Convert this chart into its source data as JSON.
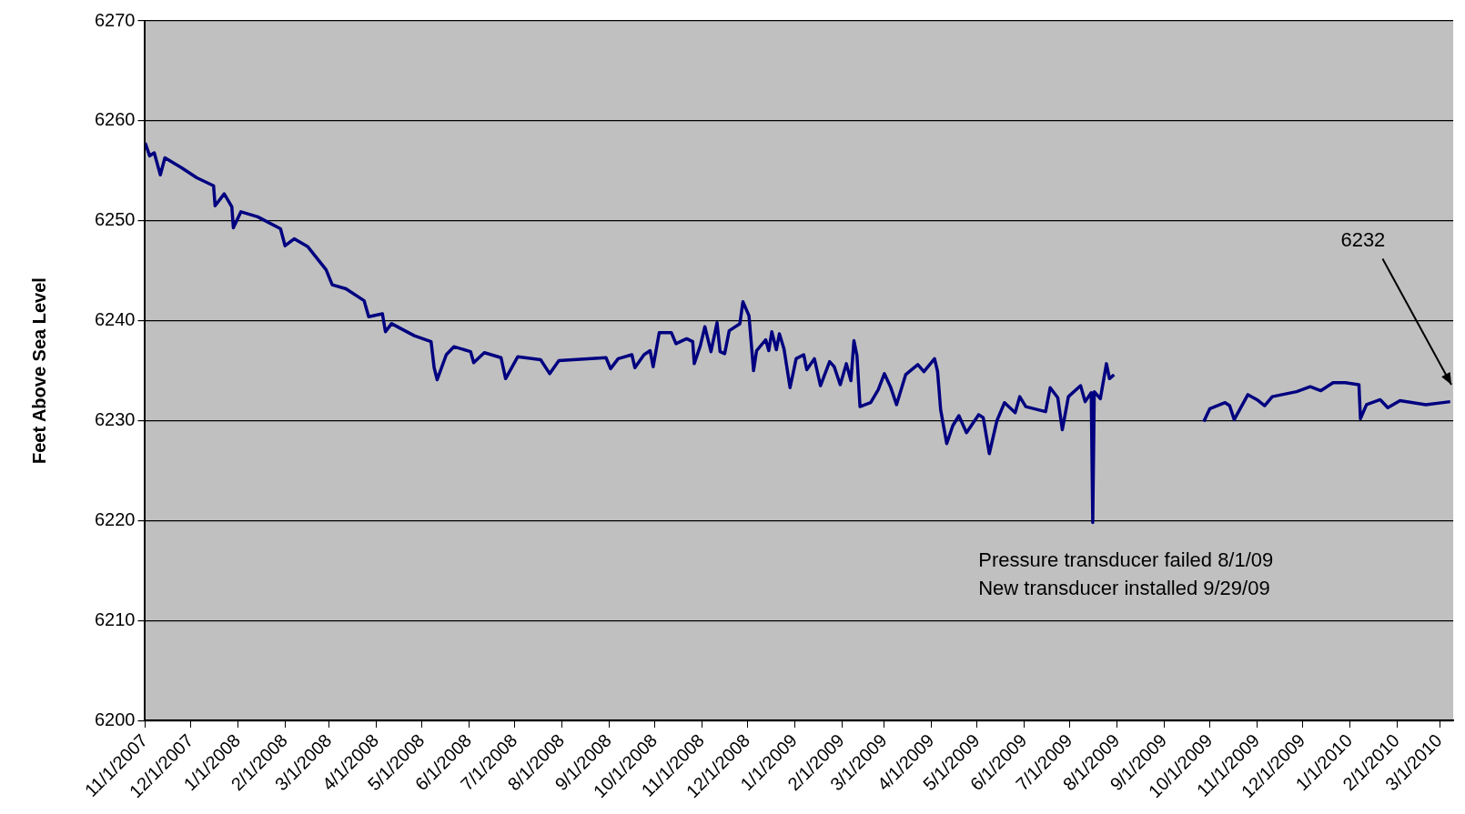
{
  "chart_data": {
    "type": "line",
    "ylabel": "Feet Above Sea Level",
    "x": [
      "2007-11-01",
      "2007-11-04",
      "2007-11-07",
      "2007-11-11",
      "2007-11-14",
      "2007-11-25",
      "2007-12-05",
      "2007-12-16",
      "2007-12-17",
      "2007-12-23",
      "2007-12-28",
      "2007-12-29",
      "2008-01-03",
      "2008-01-14",
      "2008-01-29",
      "2008-02-01",
      "2008-02-07",
      "2008-02-16",
      "2008-02-28",
      "2008-03-03",
      "2008-03-12",
      "2008-03-24",
      "2008-03-27",
      "2008-04-05",
      "2008-04-07",
      "2008-04-11",
      "2008-04-26",
      "2008-05-07",
      "2008-05-09",
      "2008-05-11",
      "2008-05-17",
      "2008-05-22",
      "2008-06-02",
      "2008-06-04",
      "2008-06-11",
      "2008-06-22",
      "2008-06-25",
      "2008-07-03",
      "2008-07-18",
      "2008-07-24",
      "2008-07-30",
      "2008-08-30",
      "2008-09-02",
      "2008-09-07",
      "2008-09-16",
      "2008-09-18",
      "2008-09-24",
      "2008-09-28",
      "2008-09-30",
      "2008-10-04",
      "2008-10-12",
      "2008-10-15",
      "2008-10-22",
      "2008-10-26",
      "2008-10-27",
      "2008-10-31",
      "2008-11-03",
      "2008-11-07",
      "2008-11-11",
      "2008-11-13",
      "2008-11-16",
      "2008-11-19",
      "2008-11-26",
      "2008-11-28",
      "2008-12-02",
      "2008-12-05",
      "2008-12-07",
      "2008-12-13",
      "2008-12-15",
      "2008-12-17",
      "2008-12-20",
      "2008-12-22",
      "2008-12-25",
      "2008-12-29",
      "2009-01-02",
      "2009-01-07",
      "2009-01-09",
      "2009-01-14",
      "2009-01-18",
      "2009-01-24",
      "2009-01-27",
      "2009-01-31",
      "2009-02-04",
      "2009-02-07",
      "2009-02-09",
      "2009-02-11",
      "2009-02-13",
      "2009-02-20",
      "2009-02-25",
      "2009-03-01",
      "2009-03-05",
      "2009-03-09",
      "2009-03-15",
      "2009-03-23",
      "2009-03-27",
      "2009-04-03",
      "2009-04-05",
      "2009-04-07",
      "2009-04-11",
      "2009-04-15",
      "2009-04-19",
      "2009-04-24",
      "2009-05-02",
      "2009-05-05",
      "2009-05-09",
      "2009-05-14",
      "2009-05-19",
      "2009-05-26",
      "2009-05-29",
      "2009-06-02",
      "2009-06-15",
      "2009-06-18",
      "2009-06-23",
      "2009-06-26",
      "2009-06-30",
      "2009-07-08",
      "2009-07-11",
      "2009-07-15",
      "2009-07-16",
      "2009-07-17",
      "2009-07-21",
      "2009-07-25",
      "2009-07-27",
      "2009-07-30",
      "2009-08-30",
      "2009-09-27",
      "2009-10-01",
      "2009-10-11",
      "2009-10-14",
      "2009-10-17",
      "2009-10-26",
      "2009-11-01",
      "2009-11-06",
      "2009-11-11",
      "2009-11-27",
      "2009-12-06",
      "2009-12-13",
      "2009-12-21",
      "2009-12-29",
      "2010-01-07",
      "2010-01-08",
      "2010-01-12",
      "2010-01-21",
      "2010-01-26",
      "2010-02-03",
      "2010-02-20",
      "2010-03-08"
    ],
    "series": [
      {
        "color": "#000080",
        "values": [
          6257.8,
          6256.5,
          6256.8,
          6254.6,
          6256.3,
          6255.3,
          6254.3,
          6253.5,
          6251.5,
          6252.7,
          6251.4,
          6249.3,
          6250.9,
          6250.4,
          6249.2,
          6247.5,
          6248.2,
          6247.4,
          6245.1,
          6243.6,
          6243.2,
          6242.0,
          6240.4,
          6240.7,
          6238.9,
          6239.7,
          6238.5,
          6237.9,
          6235.3,
          6234.1,
          6236.6,
          6237.4,
          6236.9,
          6235.8,
          6236.8,
          6236.3,
          6234.2,
          6236.4,
          6236.1,
          6234.7,
          6236.0,
          6236.3,
          6235.2,
          6236.2,
          6236.6,
          6235.3,
          6236.6,
          6237.0,
          6235.4,
          6238.8,
          6238.8,
          6237.7,
          6238.2,
          6237.9,
          6235.7,
          6237.5,
          6239.4,
          6236.9,
          6239.8,
          6236.9,
          6236.7,
          6239.0,
          6239.7,
          6241.9,
          6240.5,
          6235.0,
          6237.0,
          6238.1,
          6237.0,
          6238.9,
          6237.1,
          6238.7,
          6237.2,
          6233.3,
          6236.2,
          6236.6,
          6235.1,
          6236.2,
          6233.5,
          6235.9,
          6235.4,
          6233.6,
          6235.7,
          6234.0,
          6238.0,
          6236.5,
          6231.4,
          6231.8,
          6233.1,
          6234.7,
          6233.4,
          6231.6,
          6234.6,
          6235.6,
          6234.9,
          6236.2,
          6234.9,
          6231.1,
          6227.7,
          6229.5,
          6230.5,
          6228.8,
          6230.6,
          6230.3,
          6226.7,
          6230.0,
          6231.8,
          6230.8,
          6232.4,
          6231.4,
          6230.9,
          6233.3,
          6232.3,
          6229.1,
          6232.4,
          6233.5,
          6231.9,
          6232.8,
          6219.8,
          6232.9,
          6232.2,
          6235.7,
          6234.2,
          6234.6,
          null,
          6229.9,
          6231.2,
          6231.8,
          6231.5,
          6230.1,
          6232.6,
          6232.1,
          6231.5,
          6232.4,
          6232.9,
          6233.4,
          6233.0,
          6233.8,
          6233.8,
          6233.6,
          6230.2,
          6231.6,
          6232.1,
          6231.3,
          6232.0,
          6231.6,
          6231.9
        ]
      }
    ],
    "xlim": [
      "2007-11-01",
      "2010-03-10"
    ],
    "xticks": [
      {
        "value": "2007-11-01",
        "label": "11/1/2007"
      },
      {
        "value": "2007-12-01",
        "label": "12/1/2007"
      },
      {
        "value": "2008-01-01",
        "label": "1/1/2008"
      },
      {
        "value": "2008-02-01",
        "label": "2/1/2008"
      },
      {
        "value": "2008-03-01",
        "label": "3/1/2008"
      },
      {
        "value": "2008-04-01",
        "label": "4/1/2008"
      },
      {
        "value": "2008-05-01",
        "label": "5/1/2008"
      },
      {
        "value": "2008-06-01",
        "label": "6/1/2008"
      },
      {
        "value": "2008-07-01",
        "label": "7/1/2008"
      },
      {
        "value": "2008-08-01",
        "label": "8/1/2008"
      },
      {
        "value": "2008-09-01",
        "label": "9/1/2008"
      },
      {
        "value": "2008-10-01",
        "label": "10/1/2008"
      },
      {
        "value": "2008-11-01",
        "label": "11/1/2008"
      },
      {
        "value": "2008-12-01",
        "label": "12/1/2008"
      },
      {
        "value": "2009-01-01",
        "label": "1/1/2009"
      },
      {
        "value": "2009-02-01",
        "label": "2/1/2009"
      },
      {
        "value": "2009-03-01",
        "label": "3/1/2009"
      },
      {
        "value": "2009-04-01",
        "label": "4/1/2009"
      },
      {
        "value": "2009-05-01",
        "label": "5/1/2009"
      },
      {
        "value": "2009-06-01",
        "label": "6/1/2009"
      },
      {
        "value": "2009-07-01",
        "label": "7/1/2009"
      },
      {
        "value": "2009-08-01",
        "label": "8/1/2009"
      },
      {
        "value": "2009-09-01",
        "label": "9/1/2009"
      },
      {
        "value": "2009-10-01",
        "label": "10/1/2009"
      },
      {
        "value": "2009-11-01",
        "label": "11/1/2009"
      },
      {
        "value": "2009-12-01",
        "label": "12/1/2009"
      },
      {
        "value": "2010-01-01",
        "label": "1/1/2010"
      },
      {
        "value": "2010-02-01",
        "label": "2/1/2010"
      },
      {
        "value": "2010-03-01",
        "label": "3/1/2010"
      }
    ],
    "ylim": [
      6200,
      6270
    ],
    "yticks": [
      6200,
      6210,
      6220,
      6230,
      6240,
      6250,
      6260,
      6270
    ],
    "grid": "y",
    "legend": false,
    "marker": "none",
    "line_style": "solid",
    "annotations": [
      "6232",
      "Pressure transducer failed 8/1/09",
      "New transducer installed 9/29/09"
    ]
  }
}
